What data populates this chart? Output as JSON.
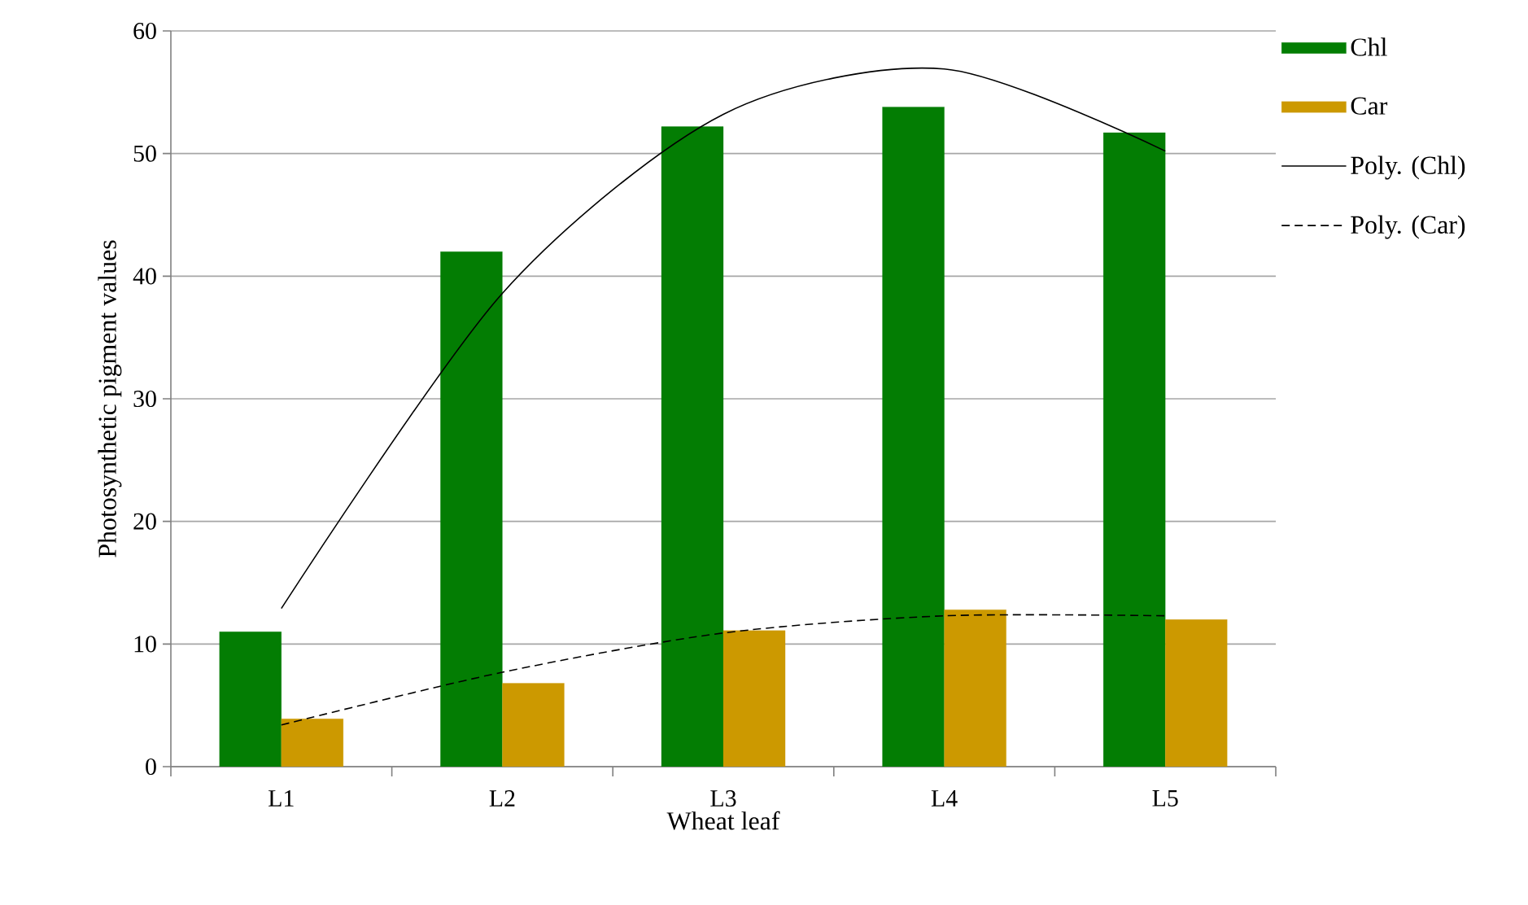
{
  "chart_data": {
    "type": "bar",
    "xlabel": "Wheat leaf",
    "ylabel": "Photosynthetic pigment values",
    "categories": [
      "L1",
      "L2",
      "L3",
      "L4",
      "L5"
    ],
    "series": [
      {
        "name": "Chl",
        "color": "#037d03",
        "values": [
          11.0,
          42.0,
          52.2,
          53.8,
          51.7
        ]
      },
      {
        "name": "Car",
        "color": "#cc9900",
        "values": [
          3.9,
          6.8,
          11.1,
          12.8,
          12.0
        ]
      },
      {
        "name": "Poly. (Chl)",
        "type": "line",
        "color": "#000000",
        "line_style": "solid",
        "values": [
          12.9,
          38.6,
          53.2,
          56.9,
          50.2
        ]
      },
      {
        "name": "Poly. (Car)",
        "type": "line",
        "color": "#000000",
        "line_style": "dashed",
        "values": [
          3.4,
          7.7,
          10.9,
          12.3,
          12.3
        ]
      }
    ],
    "ylim": [
      0,
      60
    ],
    "yticks": [
      0,
      10,
      20,
      30,
      40,
      50,
      60
    ],
    "grid": "y",
    "legend": "right",
    "marker": "none"
  }
}
